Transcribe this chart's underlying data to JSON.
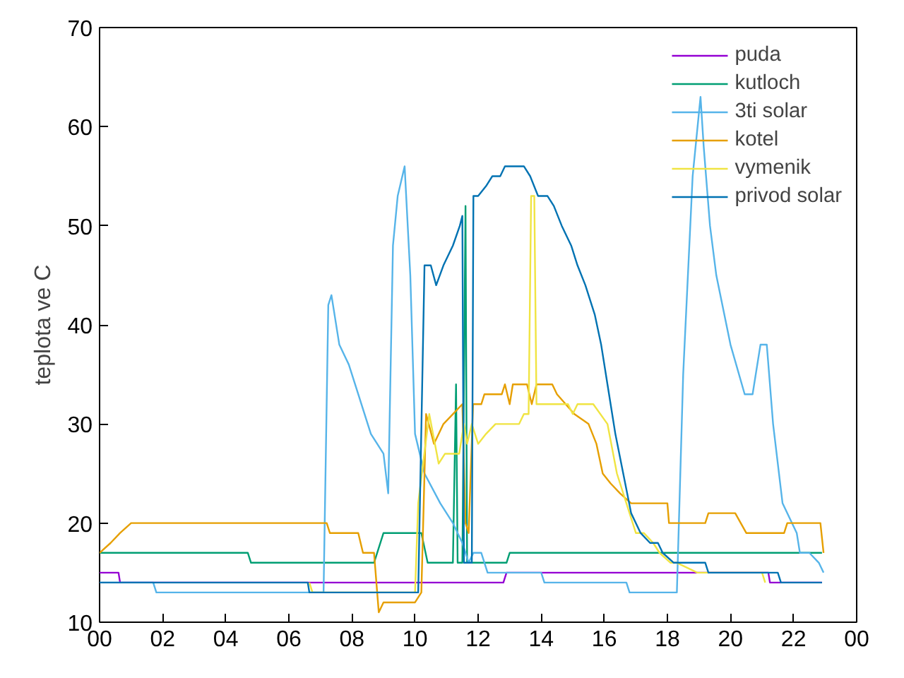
{
  "chart_data": {
    "type": "line",
    "ylabel": "teplota ve C",
    "xlim": [
      0,
      24
    ],
    "ylim": [
      10,
      70
    ],
    "xticks": [
      {
        "value": 0,
        "label": "00"
      },
      {
        "value": 2,
        "label": "02"
      },
      {
        "value": 4,
        "label": "04"
      },
      {
        "value": 6,
        "label": "06"
      },
      {
        "value": 8,
        "label": "08"
      },
      {
        "value": 10,
        "label": "10"
      },
      {
        "value": 12,
        "label": "12"
      },
      {
        "value": 14,
        "label": "14"
      },
      {
        "value": 16,
        "label": "16"
      },
      {
        "value": 18,
        "label": "18"
      },
      {
        "value": 20,
        "label": "20"
      },
      {
        "value": 22,
        "label": "22"
      },
      {
        "value": 24,
        "label": "00"
      }
    ],
    "yticks": [
      10,
      20,
      30,
      40,
      50,
      60,
      70
    ],
    "grid": false,
    "legend": "top right",
    "marker": "none",
    "line_style": "solid",
    "series": [
      {
        "name": "puda",
        "color": "#9400d3",
        "x": [
          0,
          0.6,
          0.65,
          12.8,
          12.9,
          21.2,
          21.25,
          22.9
        ],
        "values": [
          15,
          15,
          14,
          14,
          15,
          15,
          14,
          14
        ]
      },
      {
        "name": "kutloch",
        "color": "#009e73",
        "x": [
          0,
          4.7,
          4.8,
          8.7,
          9.0,
          10.2,
          10.4,
          11.2,
          11.3,
          11.35,
          11.5,
          11.6,
          11.65,
          11.75,
          11.8,
          12.9,
          13.0,
          22.9
        ],
        "values": [
          17,
          17,
          16,
          16,
          19,
          19,
          16,
          16,
          34,
          16,
          16,
          52,
          16,
          16,
          16,
          16,
          17,
          17
        ]
      },
      {
        "name": "3ti solar",
        "color": "#56b4e9",
        "x": [
          0,
          1.7,
          1.8,
          7.1,
          7.25,
          7.35,
          7.6,
          7.9,
          8.2,
          8.6,
          9.0,
          9.15,
          9.3,
          9.45,
          9.67,
          9.85,
          10.0,
          10.3,
          10.8,
          11.2,
          11.5,
          11.7,
          11.85,
          12.1,
          12.3,
          14.0,
          14.1,
          16.7,
          16.8,
          18.3,
          18.5,
          18.8,
          19.05,
          19.15,
          19.35,
          19.55,
          20.0,
          20.45,
          20.7,
          20.95,
          21.15,
          21.35,
          21.65,
          22.1,
          22.2,
          22.5,
          22.8,
          22.95
        ],
        "values": [
          14,
          14,
          13,
          13,
          42,
          43,
          38,
          36,
          33,
          29,
          27,
          23,
          48,
          53,
          56,
          45,
          29,
          25,
          22,
          20,
          18,
          16,
          17,
          17,
          15,
          15,
          14,
          14,
          13,
          13,
          35,
          55,
          63,
          58,
          50,
          45,
          38,
          33,
          33,
          38,
          38,
          30,
          22,
          19,
          17,
          17,
          16,
          15
        ]
      },
      {
        "name": "kotel",
        "color": "#e69f00",
        "x": [
          0,
          0.35,
          0.65,
          1.0,
          7.2,
          7.3,
          8.2,
          8.35,
          8.7,
          8.85,
          9.0,
          10.0,
          10.2,
          10.35,
          10.6,
          10.9,
          11.2,
          11.5,
          11.6,
          11.7,
          11.84,
          12.1,
          12.2,
          12.75,
          12.85,
          13.0,
          13.1,
          13.55,
          13.7,
          13.85,
          14.35,
          14.5,
          15.05,
          15.5,
          15.75,
          15.95,
          16.2,
          16.5,
          16.85,
          18.0,
          18.05,
          19.2,
          19.3,
          20.15,
          20.5,
          21.7,
          21.8,
          22.85,
          22.95
        ],
        "values": [
          17,
          18,
          19,
          20,
          20,
          19,
          19,
          17,
          17,
          11,
          12,
          12,
          13,
          31,
          28,
          30,
          31,
          32,
          20,
          19,
          32,
          32,
          33,
          33,
          34,
          32,
          34,
          34,
          32,
          34,
          34,
          33,
          31,
          30,
          28,
          25,
          24,
          23,
          22,
          22,
          20,
          20,
          21,
          21,
          19,
          19,
          20,
          20,
          17
        ]
      },
      {
        "name": "vymenik",
        "color": "#f0e442",
        "x": [
          6.65,
          6.75,
          10.0,
          10.1,
          10.45,
          10.75,
          10.95,
          11.4,
          11.55,
          11.65,
          11.8,
          12.0,
          12.25,
          12.55,
          13.3,
          13.45,
          13.6,
          13.68,
          13.78,
          13.85,
          14.85,
          15.0,
          15.15,
          15.65,
          16.1,
          16.4,
          16.7,
          17.0,
          17.25,
          17.55,
          17.75,
          18.1,
          18.3,
          18.95,
          21.0,
          21.1
        ],
        "values": [
          14,
          13,
          13,
          22,
          31,
          26,
          27,
          27,
          30,
          28,
          30,
          28,
          29,
          30,
          30,
          31,
          31,
          53,
          53,
          32,
          32,
          31,
          32,
          32,
          30,
          25,
          22,
          19,
          19,
          18,
          17,
          16,
          16,
          15,
          15,
          14
        ]
      },
      {
        "name": "privod solar",
        "color": "#0072b2",
        "x": [
          0,
          6.6,
          6.65,
          10.1,
          10.3,
          10.5,
          10.67,
          10.9,
          11.2,
          11.42,
          11.5,
          11.55,
          11.8,
          11.85,
          12.0,
          12.25,
          12.45,
          12.7,
          12.85,
          13.45,
          13.65,
          13.9,
          14.2,
          14.4,
          14.65,
          14.95,
          15.15,
          15.4,
          15.7,
          15.9,
          16.1,
          16.35,
          16.6,
          16.85,
          17.15,
          17.45,
          17.7,
          17.85,
          18.2,
          18.3,
          19.2,
          19.3,
          21.5,
          21.6,
          22.9
        ],
        "values": [
          14,
          14,
          13,
          13,
          46,
          46,
          44,
          46,
          48,
          50,
          51,
          16,
          16,
          53,
          53,
          54,
          55,
          55,
          56,
          56,
          55,
          53,
          53,
          52,
          50,
          48,
          46,
          44,
          41,
          38,
          34,
          29,
          25,
          21,
          19,
          18,
          18,
          17,
          16,
          16,
          16,
          15,
          15,
          14,
          14
        ]
      }
    ]
  }
}
